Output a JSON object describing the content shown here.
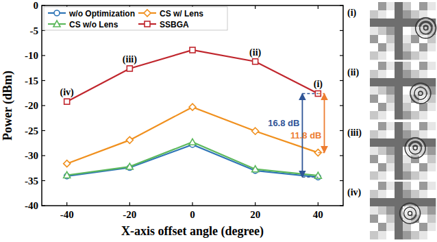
{
  "chart_data": {
    "type": "line",
    "x_label": "X-axis offset angle (degree)",
    "y_label": "Power (dBm)",
    "x": [
      -40,
      -20,
      0,
      20,
      40
    ],
    "series": [
      {
        "name": "w/o Optimization",
        "color": "#2e75b6",
        "marker": "circle",
        "values": [
          -34.1,
          -32.4,
          -27.8,
          -33.0,
          -34.3
        ]
      },
      {
        "name": "CS w/ Lens",
        "color": "#f0901e",
        "marker": "diamond",
        "values": [
          -31.6,
          -26.9,
          -20.3,
          -25.1,
          -29.4
        ]
      },
      {
        "name": "CS w/o Lens",
        "color": "#5cb85c",
        "marker": "triangle",
        "values": [
          -33.9,
          -32.2,
          -27.3,
          -32.7,
          -34.0
        ]
      },
      {
        "name": "SSBGA",
        "color": "#c0262d",
        "marker": "square",
        "values": [
          -19.2,
          -12.6,
          -8.9,
          -11.2,
          -17.6
        ]
      }
    ],
    "xlim": [
      -48,
      48
    ],
    "xticks": [
      -40,
      -20,
      0,
      20,
      40
    ],
    "ylim": [
      -40,
      0
    ],
    "yticks": [
      -40,
      -35,
      -30,
      -25,
      -20,
      -15,
      -10,
      -5,
      0
    ],
    "legend": "upper-left",
    "annotations": [
      {
        "text": "(i)",
        "x": 40
      },
      {
        "text": "(ii)",
        "x": 20
      },
      {
        "text": "(iii)",
        "x": -20
      },
      {
        "text": "(iv)",
        "x": -40
      }
    ],
    "arrows": [
      {
        "text": "16.8 dB",
        "x": 35,
        "from": -34.3,
        "to": -17.6,
        "color": "#2f5597"
      },
      {
        "text": "11.8 dB",
        "x": 42,
        "from": -29.4,
        "to": -17.6,
        "color": "#ed7d31"
      }
    ],
    "panels": [
      "(i)",
      "(ii)",
      "(iii)",
      "(iv)"
    ]
  }
}
